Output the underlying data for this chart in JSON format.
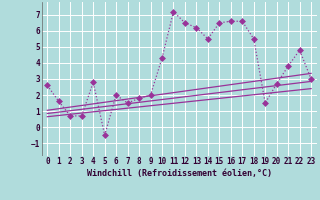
{
  "xlabel": "Windchill (Refroidissement éolien,°C)",
  "bg_color": "#b0dcdc",
  "grid_color": "#ffffff",
  "line_color": "#993399",
  "xlim": [
    -0.5,
    23.5
  ],
  "ylim": [
    -1.8,
    7.8
  ],
  "yticks": [
    -1,
    0,
    1,
    2,
    3,
    4,
    5,
    6,
    7
  ],
  "xticks": [
    0,
    1,
    2,
    3,
    4,
    5,
    6,
    7,
    8,
    9,
    10,
    11,
    12,
    13,
    14,
    15,
    16,
    17,
    18,
    19,
    20,
    21,
    22,
    23
  ],
  "main_x": [
    0,
    1,
    2,
    3,
    4,
    5,
    6,
    7,
    8,
    9,
    10,
    11,
    12,
    13,
    14,
    15,
    16,
    17,
    18,
    19,
    20,
    21,
    22,
    23
  ],
  "main_y": [
    2.6,
    1.6,
    0.7,
    0.7,
    2.8,
    -0.5,
    2.0,
    1.5,
    1.8,
    2.0,
    4.3,
    7.2,
    6.5,
    6.2,
    5.5,
    6.5,
    6.6,
    6.6,
    5.5,
    1.5,
    2.7,
    3.8,
    4.8,
    3.0
  ],
  "reg_lines": [
    [
      [
        0,
        23
      ],
      [
        0.65,
        2.4
      ]
    ],
    [
      [
        0,
        23
      ],
      [
        0.85,
        2.85
      ]
    ],
    [
      [
        0,
        23
      ],
      [
        1.05,
        3.35
      ]
    ]
  ],
  "markersize": 3,
  "linewidth": 0.9,
  "tick_fontsize": 5.5,
  "xlabel_fontsize": 6.0
}
